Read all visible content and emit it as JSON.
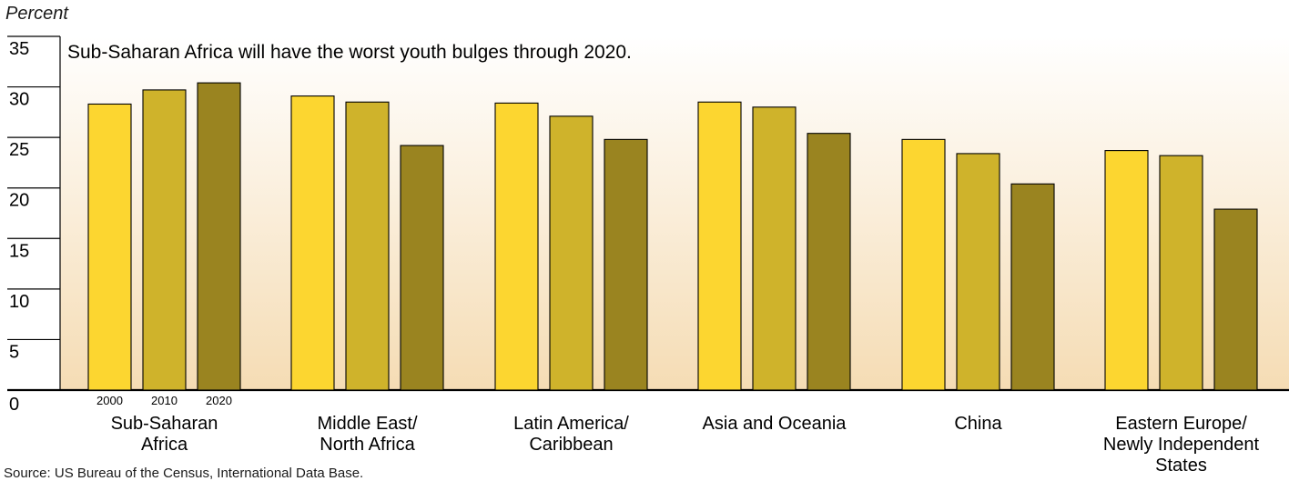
{
  "chart_data": {
    "type": "bar",
    "title": "",
    "ylabel": "Percent",
    "xlabel": "",
    "annotation": "Sub-Saharan Africa will have the worst youth bulges through 2020.",
    "ylim": [
      0,
      35
    ],
    "yticks": [
      "0",
      "5",
      "10",
      "15",
      "20",
      "25",
      "30",
      "35"
    ],
    "grid": false,
    "categories": [
      [
        "Sub-Saharan",
        "Africa"
      ],
      [
        "Middle East/",
        "North Africa"
      ],
      [
        "Latin America/",
        "Caribbean"
      ],
      [
        "Asia and Oceania"
      ],
      [
        "China"
      ],
      [
        "Eastern Europe/",
        "Newly Independent",
        "States"
      ]
    ],
    "series": [
      {
        "name": "2000",
        "color": "#FCD630",
        "values": [
          28.3,
          29.1,
          28.4,
          28.5,
          24.8,
          23.7
        ]
      },
      {
        "name": "2010",
        "color": "#CFB32B",
        "values": [
          29.7,
          28.5,
          27.1,
          28.0,
          23.4,
          23.2
        ]
      },
      {
        "name": "2020",
        "color": "#9A8420",
        "values": [
          30.4,
          24.2,
          24.8,
          25.4,
          20.4,
          17.9
        ]
      }
    ],
    "background_gradient": {
      "top": "#FFFFFF",
      "bottom": "#F5DCB4"
    }
  },
  "source": "Source: US Bureau of the Census, International Data Base."
}
